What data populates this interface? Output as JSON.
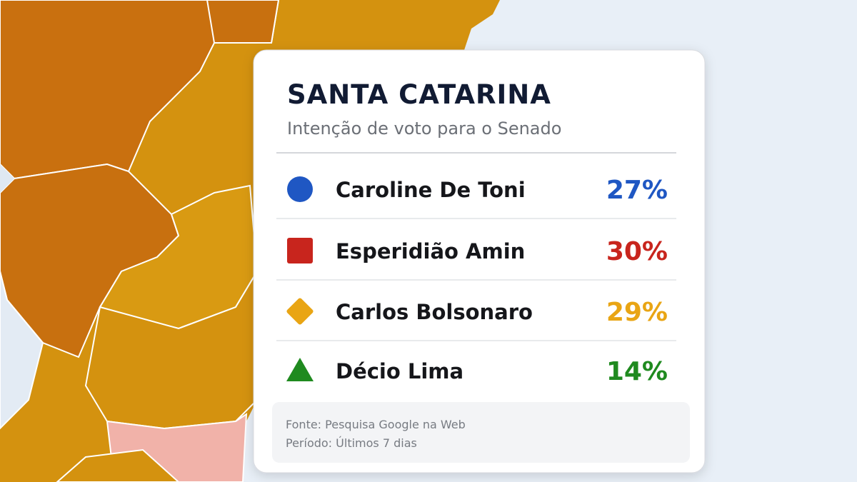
{
  "card": {
    "title": "SANTA CATARINA",
    "subtitle": "Intenção de voto para o Senado",
    "rows": [
      {
        "name": "Caroline De Toni",
        "value": "27%",
        "color": "#1f57c3",
        "marker": "circle"
      },
      {
        "name": "Esperidião Amin",
        "value": "30%",
        "color": "#c8251d",
        "marker": "square"
      },
      {
        "name": "Carlos Bolsonaro",
        "value": "29%",
        "color": "#e9a514",
        "marker": "diamond"
      },
      {
        "name": "Décio Lima",
        "value": "14%",
        "color": "#1f8a1f",
        "marker": "triangle"
      }
    ],
    "footer": [
      "Fonte: Pesquisa Google na Web",
      "Período: Últimos 7 dias"
    ]
  }
}
